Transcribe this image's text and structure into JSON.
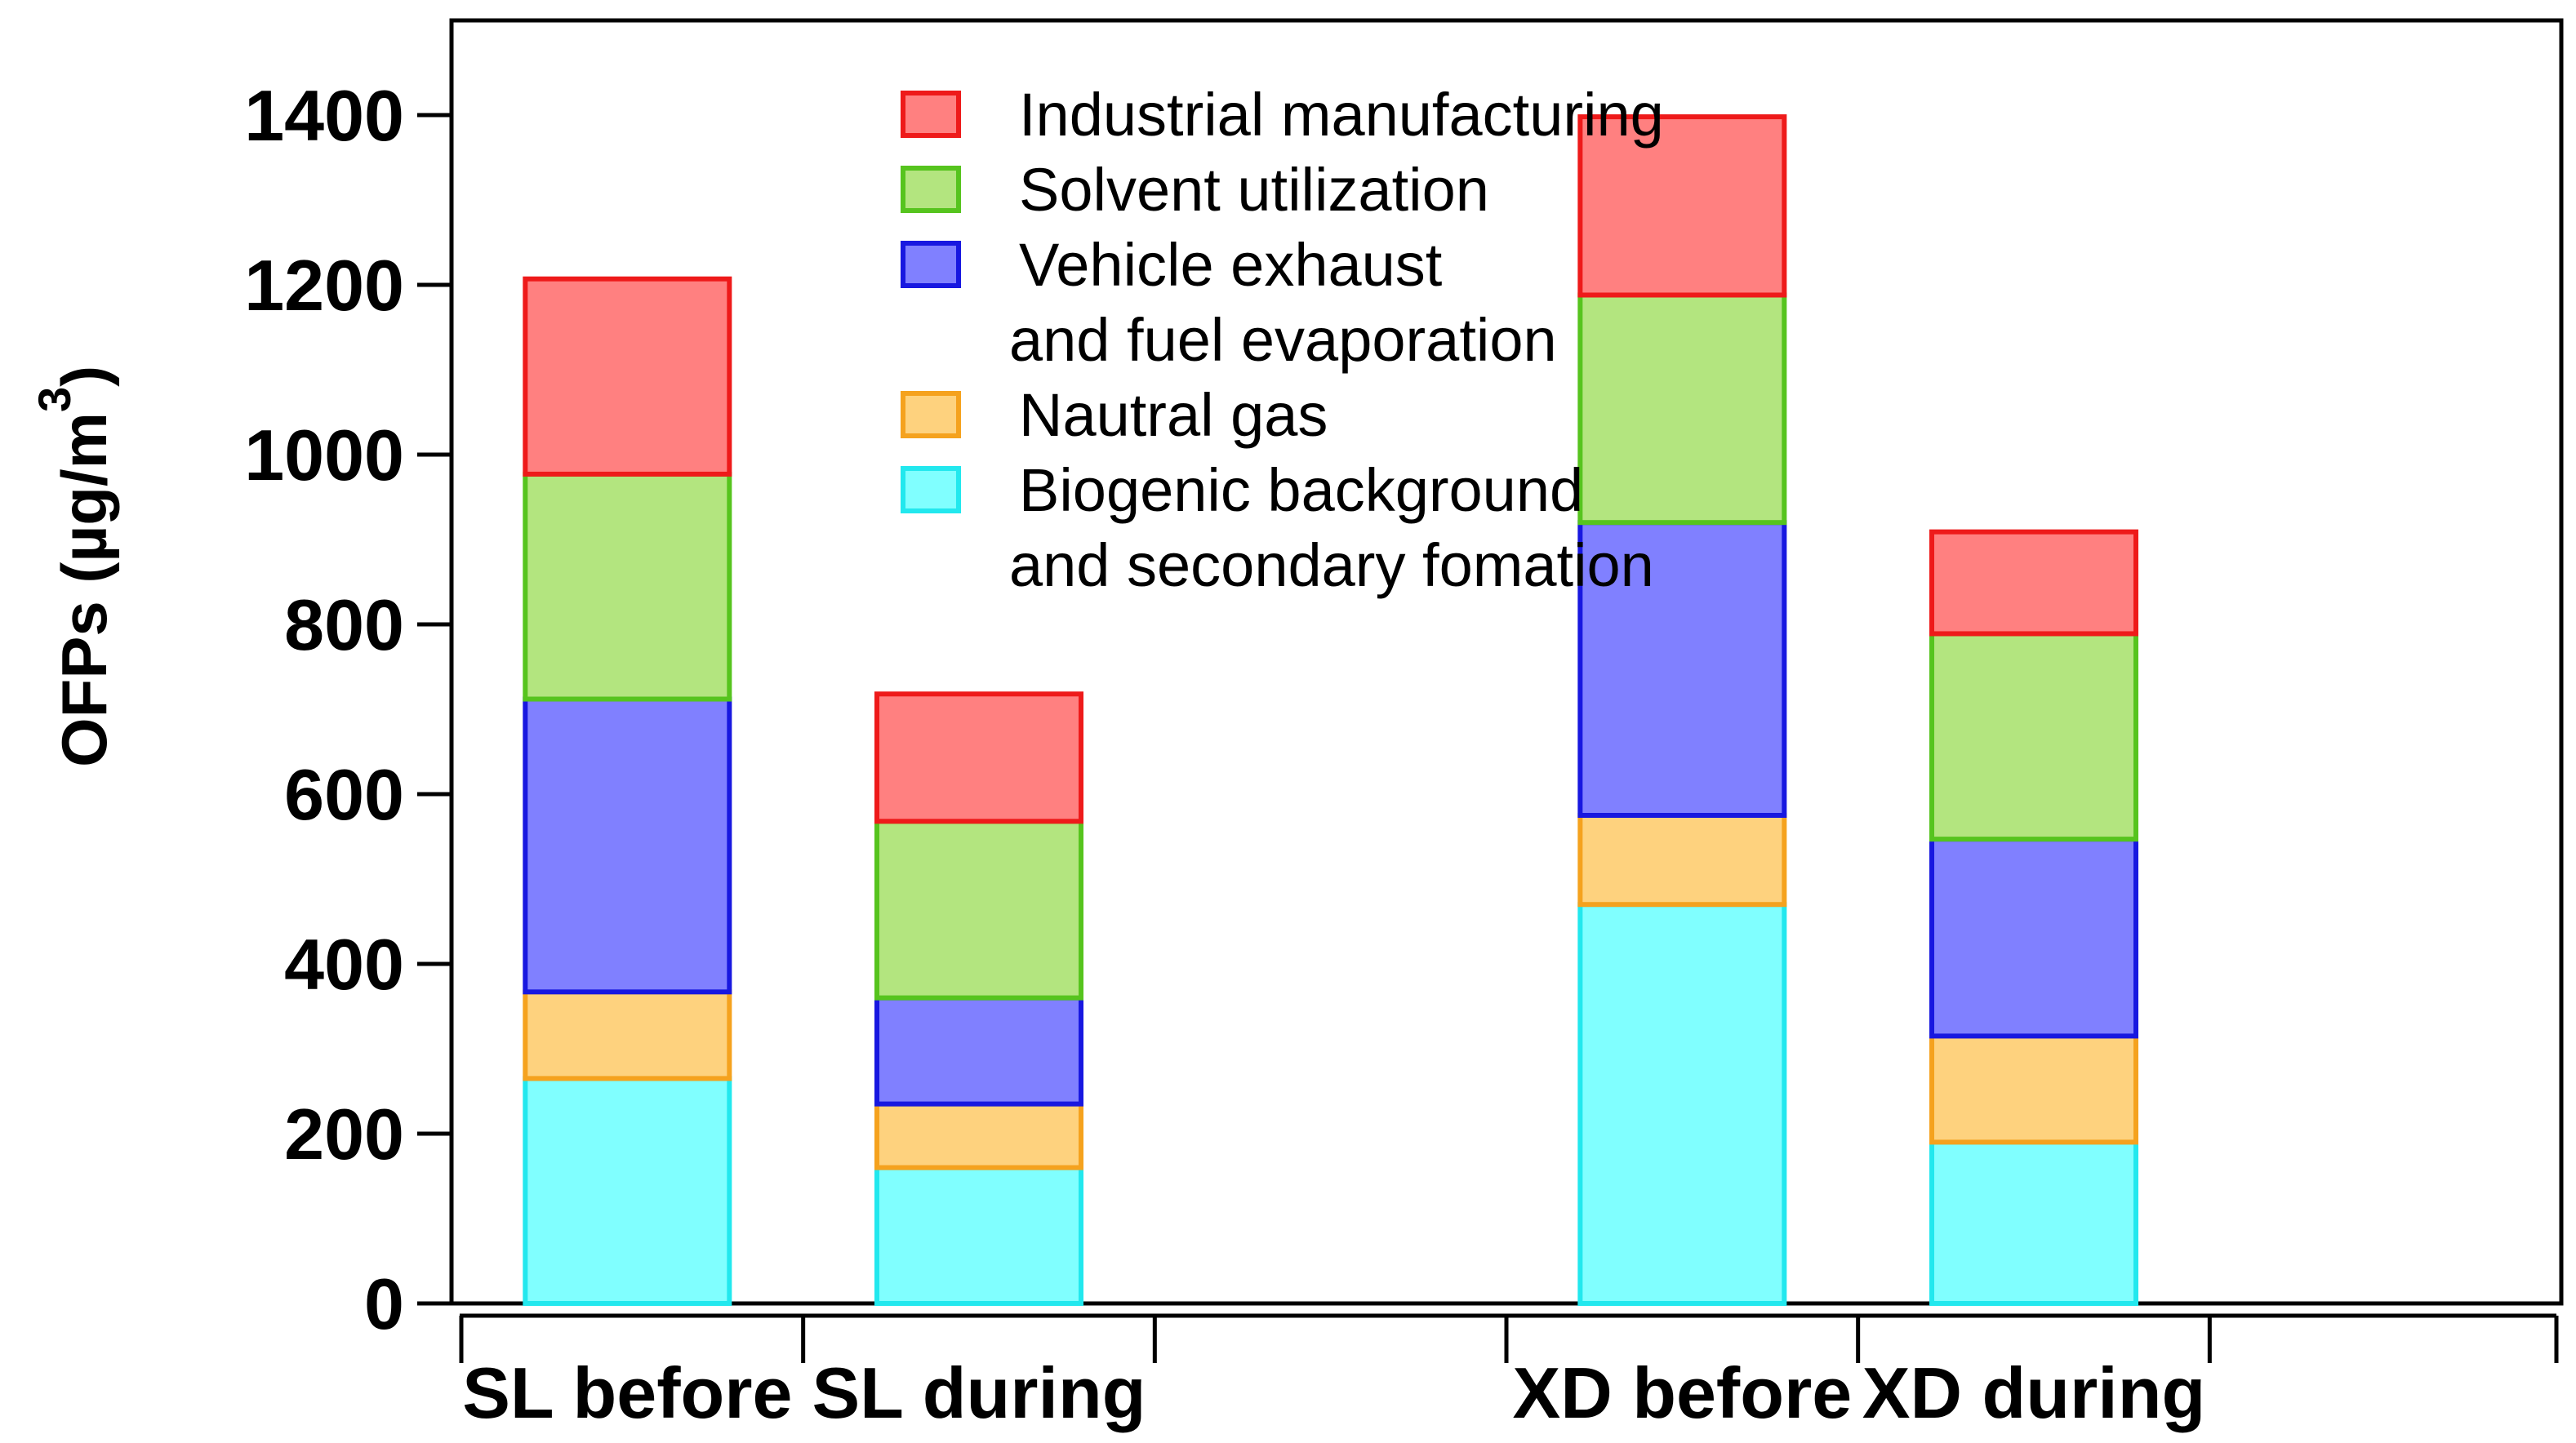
{
  "chart_data": {
    "type": "bar",
    "stacked": true,
    "title": "",
    "xlabel": "",
    "ylabel": "OFPs  (µg/m",
    "ylabel_superscript": "3",
    "ylabel_close": ")",
    "ylim": [
      0,
      1500
    ],
    "yticks": [
      0,
      200,
      400,
      600,
      800,
      1000,
      1200,
      1400
    ],
    "x_slots": 6,
    "categories": [
      {
        "label": "SL before",
        "slot": 0
      },
      {
        "label": "SL during",
        "slot": 1
      },
      {
        "label": "XD before",
        "slot": 3
      },
      {
        "label": "XD during",
        "slot": 4
      }
    ],
    "series": [
      {
        "name": "Biogenic background",
        "name_line2": "and secondary fomation",
        "fill": "#80ffff",
        "stroke": "#22e8ee",
        "values": [
          265,
          160,
          470,
          190
        ]
      },
      {
        "name": "Nautral gas",
        "fill": "#fed27e",
        "stroke": "#f5a21e",
        "values": [
          102,
          75,
          105,
          125
        ]
      },
      {
        "name": "Vehicle exhaust",
        "name_line2": "and fuel evaporation",
        "fill": "#8080ff",
        "stroke": "#1818e0",
        "values": [
          345,
          125,
          345,
          232
        ]
      },
      {
        "name": "Solvent utilization",
        "fill": "#b3e57f",
        "stroke": "#56c41e",
        "values": [
          265,
          208,
          268,
          242
        ]
      },
      {
        "name": "Industrial manufacturing",
        "fill": "#ff8080",
        "stroke": "#ee1a1a",
        "values": [
          230,
          150,
          210,
          120
        ]
      }
    ],
    "legend": {
      "placement": "top-center",
      "order": [
        "Industrial manufacturing",
        "Solvent utilization",
        "Vehicle exhaust",
        "Nautral gas",
        "Biogenic background"
      ]
    }
  }
}
